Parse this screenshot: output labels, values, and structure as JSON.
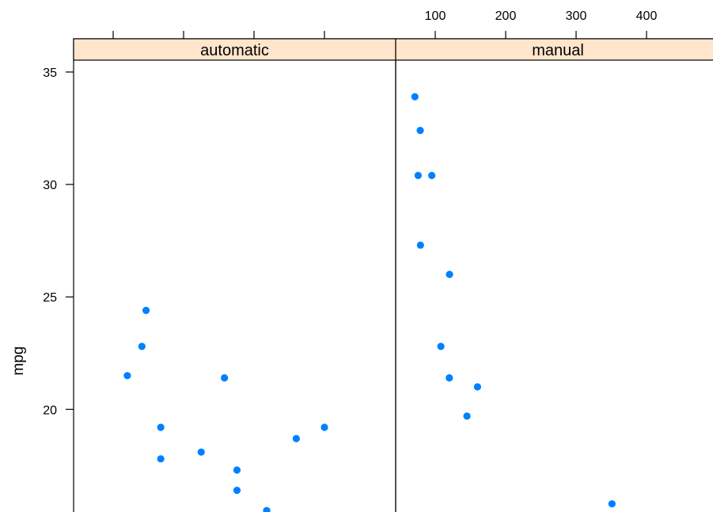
{
  "chart_data": {
    "type": "scatter",
    "title": "",
    "ylabel": "mpg",
    "xlabel": "",
    "ylim": [
      15.5,
      35.5
    ],
    "x_ticks": [
      100,
      200,
      300,
      400
    ],
    "y_ticks": [
      20,
      25,
      30,
      35
    ],
    "y_tick_labels": [
      "20",
      "25",
      "30",
      "35"
    ],
    "x_tick_labels": [
      "100",
      "200",
      "300",
      "400"
    ],
    "grid": false,
    "point_color": "#0080ff",
    "strip_color": "#ffe5cc",
    "panels": [
      {
        "name": "automatic",
        "points": [
          {
            "x": 146.7,
            "y": 24.4
          },
          {
            "x": 140.8,
            "y": 22.8
          },
          {
            "x": 120.1,
            "y": 21.5
          },
          {
            "x": 167.6,
            "y": 19.2
          },
          {
            "x": 167.6,
            "y": 17.8
          },
          {
            "x": 258.0,
            "y": 21.4
          },
          {
            "x": 225.0,
            "y": 18.1
          },
          {
            "x": 275.8,
            "y": 17.3
          },
          {
            "x": 275.8,
            "y": 16.4
          },
          {
            "x": 318.0,
            "y": 15.5
          },
          {
            "x": 360.0,
            "y": 18.7
          },
          {
            "x": 400.0,
            "y": 19.2
          }
        ]
      },
      {
        "name": "manual",
        "points": [
          {
            "x": 71.1,
            "y": 33.9
          },
          {
            "x": 78.7,
            "y": 32.4
          },
          {
            "x": 75.7,
            "y": 30.4
          },
          {
            "x": 95.1,
            "y": 30.4
          },
          {
            "x": 79.0,
            "y": 27.3
          },
          {
            "x": 120.3,
            "y": 26.0
          },
          {
            "x": 108.0,
            "y": 22.8
          },
          {
            "x": 120.0,
            "y": 21.4
          },
          {
            "x": 160.0,
            "y": 21.0
          },
          {
            "x": 145.0,
            "y": 19.7
          },
          {
            "x": 351.0,
            "y": 15.8
          }
        ]
      }
    ]
  }
}
